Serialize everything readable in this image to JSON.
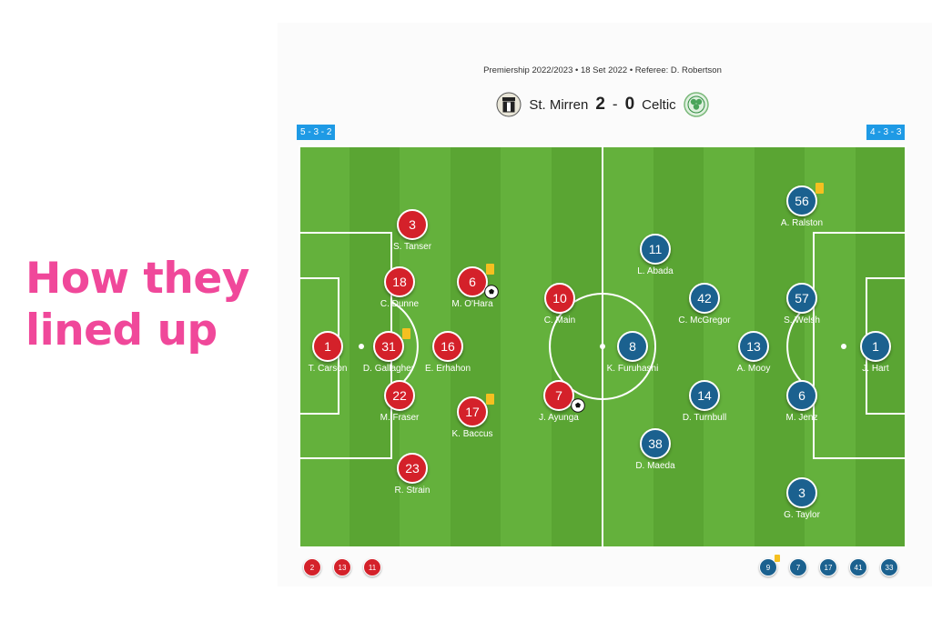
{
  "headline": {
    "line1": "How they",
    "line2": "lined up"
  },
  "match_info": "Premiership 2022/2023 • 18 Set 2022 • Referee: D. Robertson",
  "home": {
    "name": "St. Mirren",
    "score": "2",
    "formation": "5 - 3 - 2",
    "color": "#d4212a",
    "players": [
      {
        "number": "1",
        "name": "T. Carson"
      },
      {
        "number": "3",
        "name": "S. Tanser"
      },
      {
        "number": "18",
        "name": "C. Dunne"
      },
      {
        "number": "31",
        "name": "D. Gallagher"
      },
      {
        "number": "22",
        "name": "M. Fraser"
      },
      {
        "number": "23",
        "name": "R. Strain"
      },
      {
        "number": "6",
        "name": "M. O'Hara"
      },
      {
        "number": "16",
        "name": "E. Erhahon"
      },
      {
        "number": "17",
        "name": "K. Baccus"
      },
      {
        "number": "10",
        "name": "C. Main"
      },
      {
        "number": "7",
        "name": "J. Ayunga"
      }
    ],
    "subs": [
      "2",
      "13",
      "11"
    ]
  },
  "away": {
    "name": "Celtic",
    "score": "0",
    "formation": "4 - 3 - 3",
    "color": "#1b618f",
    "players": [
      {
        "number": "56",
        "name": "A. Ralston"
      },
      {
        "number": "11",
        "name": "L. Abada"
      },
      {
        "number": "42",
        "name": "C. McGregor"
      },
      {
        "number": "57",
        "name": "S. Welsh"
      },
      {
        "number": "8",
        "name": "K. Furuhashi"
      },
      {
        "number": "13",
        "name": "A. Mooy"
      },
      {
        "number": "1",
        "name": "J. Hart"
      },
      {
        "number": "14",
        "name": "D. Turnbull"
      },
      {
        "number": "6",
        "name": "M. Jenz"
      },
      {
        "number": "38",
        "name": "D. Maeda"
      },
      {
        "number": "3",
        "name": "G. Taylor"
      }
    ],
    "subs": [
      "9",
      "7",
      "17",
      "41",
      "33"
    ]
  },
  "score_separator": "-",
  "colors": {
    "pitch": "#5aa533",
    "pitch_stripe": "#64b13c",
    "accent": "#f0489a",
    "formation_badge": "#1e9ae5",
    "yellow_card": "#f5c020"
  },
  "icons": {
    "yellow_card": "yellow-card-icon",
    "goal": "football-icon"
  }
}
